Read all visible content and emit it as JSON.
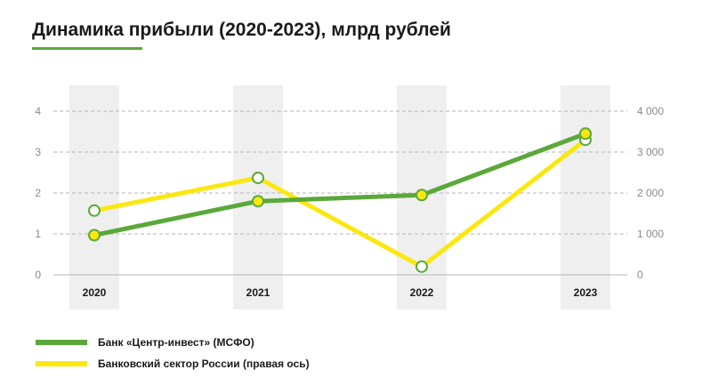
{
  "title": "Динамика прибыли (2020-2023), млрд рублей",
  "colors": {
    "accent": "#5aa83a",
    "bank": "#5aa83a",
    "sector": "#fbe70f",
    "band": "#efefef",
    "grid": "#b5b5b5",
    "axis_text": "#8a8a8a"
  },
  "chart_data": {
    "type": "line",
    "categories": [
      "2020",
      "2021",
      "2022",
      "2023"
    ],
    "y_left": {
      "ticks": [
        "0",
        "1",
        "2",
        "3",
        "4"
      ],
      "ylim": [
        0,
        4
      ]
    },
    "y_right": {
      "ticks": [
        "0",
        "1 000",
        "2 000",
        "3 000",
        "4 000"
      ],
      "ylim": [
        0,
        4000
      ]
    },
    "grid": true,
    "legend_position": "bottom-left",
    "series": [
      {
        "name": "Банк «Центр-инвест» (МСФО)",
        "axis": "left",
        "color": "#5aa83a",
        "values": [
          0.97,
          1.8,
          1.95,
          3.45
        ]
      },
      {
        "name": "Банковский сектор России (правая ось)",
        "axis": "right",
        "color": "#fbe70f",
        "values": [
          1570,
          2370,
          200,
          3300
        ]
      }
    ]
  }
}
